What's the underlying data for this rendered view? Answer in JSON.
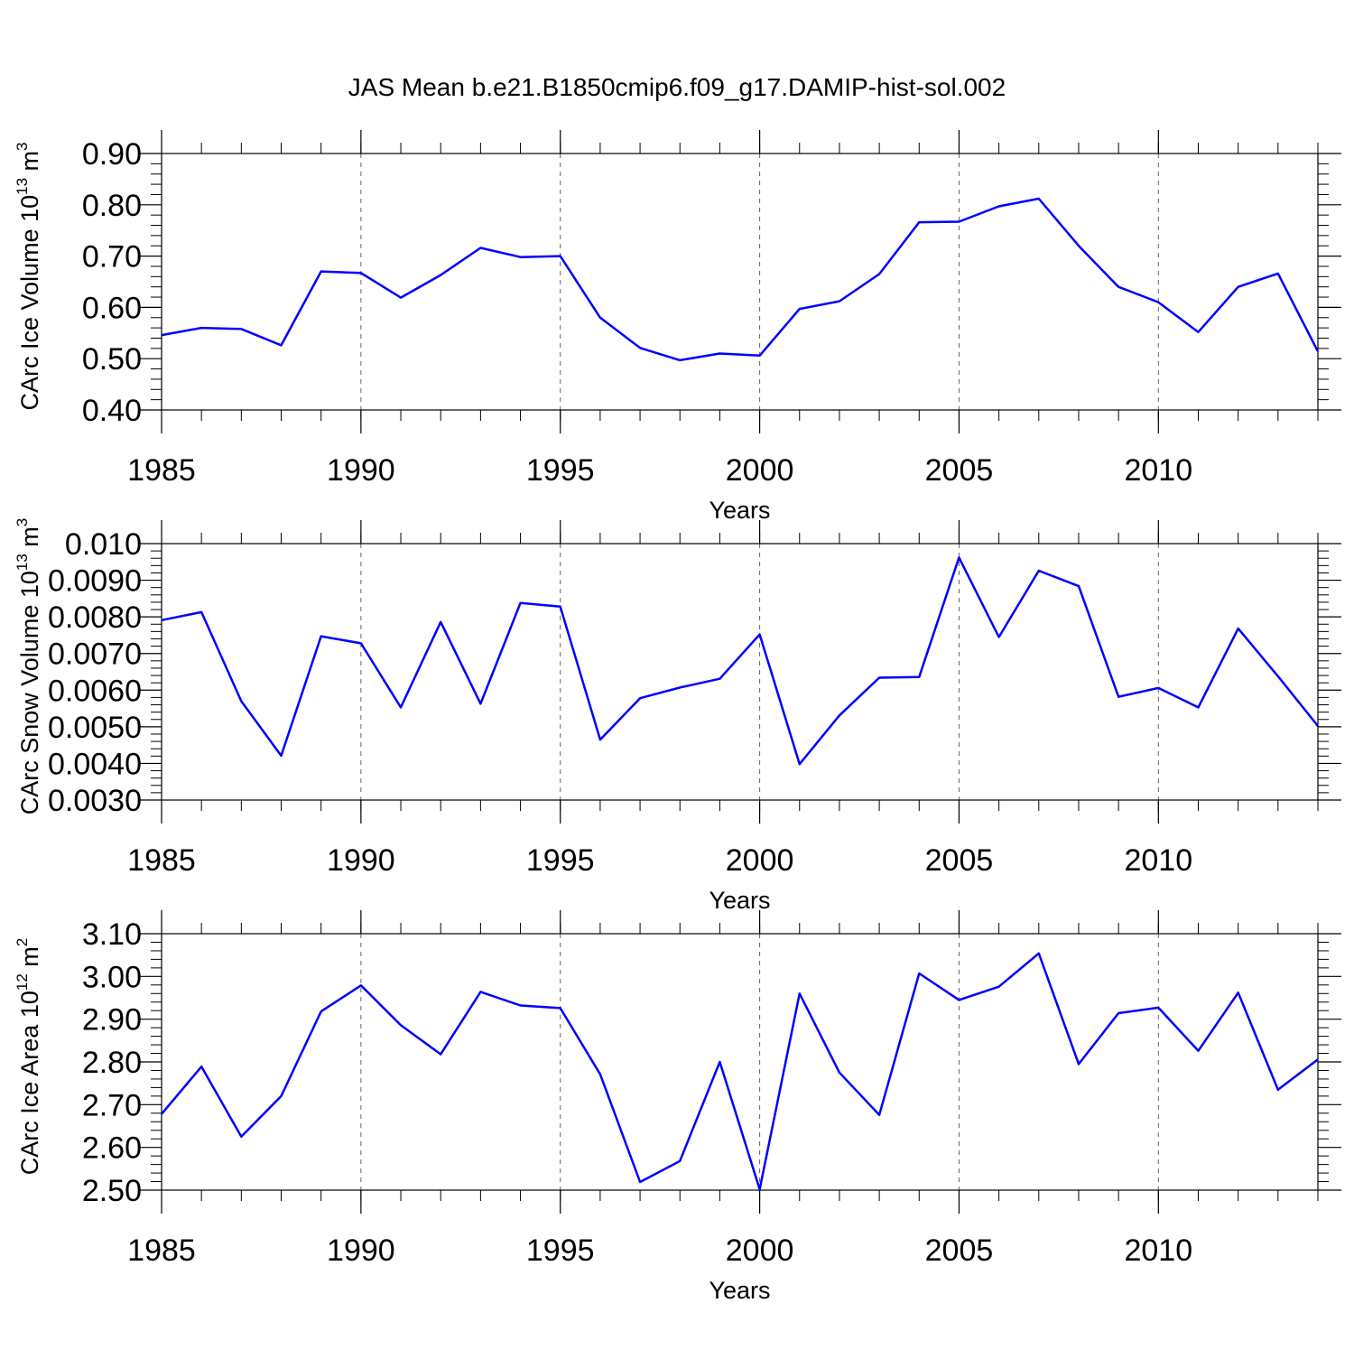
{
  "title": "JAS Mean b.e21.B1850cmip6.f09_g17.DAMIP-hist-sol.002",
  "line_color": "#0000ff",
  "chart_data": [
    {
      "type": "line",
      "ylabel": "CArc Ice Volume 10",
      "ylabel_exp": "13",
      "ylabel_unit": " m",
      "ylabel_unit_exp": "3",
      "xlabel": "Years",
      "xlim": [
        1985,
        2014
      ],
      "ylim": [
        0.4,
        0.9
      ],
      "yticks": [
        0.4,
        0.5,
        0.6,
        0.7,
        0.8,
        0.9
      ],
      "ytick_labels": [
        "0.40",
        "0.50",
        "0.60",
        "0.70",
        "0.80",
        "0.90"
      ],
      "xticks": [
        1985,
        1990,
        1995,
        2000,
        2005,
        2010
      ],
      "xtick_labels": [
        "1985",
        "1990",
        "1995",
        "2000",
        "2005",
        "2010"
      ],
      "x": [
        1985,
        1986,
        1987,
        1988,
        1989,
        1990,
        1991,
        1992,
        1993,
        1994,
        1995,
        1996,
        1997,
        1998,
        1999,
        2000,
        2001,
        2002,
        2003,
        2004,
        2005,
        2006,
        2007,
        2008,
        2009,
        2010,
        2011,
        2012,
        2013,
        2014
      ],
      "values": [
        0.546,
        0.56,
        0.558,
        0.526,
        0.67,
        0.667,
        0.619,
        0.663,
        0.716,
        0.698,
        0.7,
        0.58,
        0.521,
        0.497,
        0.51,
        0.506,
        0.597,
        0.612,
        0.665,
        0.766,
        0.767,
        0.797,
        0.812,
        0.72,
        0.64,
        0.61,
        0.552,
        0.64,
        0.666,
        0.514
      ]
    },
    {
      "type": "line",
      "ylabel": "CArc Snow Volume 10",
      "ylabel_exp": "13",
      "ylabel_unit": " m",
      "ylabel_unit_exp": "3",
      "xlabel": "Years",
      "xlim": [
        1985,
        2014
      ],
      "ylim": [
        0.003,
        0.01
      ],
      "yticks": [
        0.003,
        0.004,
        0.005,
        0.006,
        0.007,
        0.008,
        0.009,
        0.01
      ],
      "ytick_labels": [
        "0.0030",
        "0.0040",
        "0.0050",
        "0.0060",
        "0.0070",
        "0.0080",
        "0.0090",
        "0.010"
      ],
      "xticks": [
        1985,
        1990,
        1995,
        2000,
        2005,
        2010
      ],
      "xtick_labels": [
        "1985",
        "1990",
        "1995",
        "2000",
        "2005",
        "2010"
      ],
      "x": [
        1985,
        1986,
        1987,
        1988,
        1989,
        1990,
        1991,
        1992,
        1993,
        1994,
        1995,
        1996,
        1997,
        1998,
        1999,
        2000,
        2001,
        2002,
        2003,
        2004,
        2005,
        2006,
        2007,
        2008,
        2009,
        2010,
        2011,
        2012,
        2013,
        2014
      ],
      "values": [
        0.00791,
        0.00813,
        0.0057,
        0.00421,
        0.00747,
        0.00728,
        0.00553,
        0.00786,
        0.00563,
        0.00838,
        0.00828,
        0.00465,
        0.00578,
        0.00607,
        0.00631,
        0.00752,
        0.00398,
        0.00531,
        0.00634,
        0.00636,
        0.00962,
        0.00745,
        0.00926,
        0.00884,
        0.00582,
        0.00606,
        0.00553,
        0.00768,
        0.00638,
        0.00502
      ]
    },
    {
      "type": "line",
      "ylabel": "CArc Ice Area 10",
      "ylabel_exp": "12",
      "ylabel_unit": " m",
      "ylabel_unit_exp": "2",
      "xlabel": "Years",
      "xlim": [
        1985,
        2014
      ],
      "ylim": [
        2.5,
        3.1
      ],
      "yticks": [
        2.5,
        2.6,
        2.7,
        2.8,
        2.9,
        3.0,
        3.1
      ],
      "ytick_labels": [
        "2.50",
        "2.60",
        "2.70",
        "2.80",
        "2.90",
        "3.00",
        "3.10"
      ],
      "xticks": [
        1985,
        1990,
        1995,
        2000,
        2005,
        2010
      ],
      "xtick_labels": [
        "1985",
        "1990",
        "1995",
        "2000",
        "2005",
        "2010"
      ],
      "x": [
        1985,
        1986,
        1987,
        1988,
        1989,
        1990,
        1991,
        1992,
        1993,
        1994,
        1995,
        1996,
        1997,
        1998,
        1999,
        2000,
        2001,
        2002,
        2003,
        2004,
        2005,
        2006,
        2007,
        2008,
        2009,
        2010,
        2011,
        2012,
        2013,
        2014
      ],
      "values": [
        2.678,
        2.789,
        2.625,
        2.72,
        2.918,
        2.979,
        2.886,
        2.818,
        2.964,
        2.932,
        2.926,
        2.771,
        2.519,
        2.568,
        2.8,
        2.502,
        2.96,
        2.775,
        2.676,
        3.007,
        2.945,
        2.976,
        3.054,
        2.795,
        2.914,
        2.927,
        2.826,
        2.962,
        2.735,
        2.806
      ]
    }
  ]
}
